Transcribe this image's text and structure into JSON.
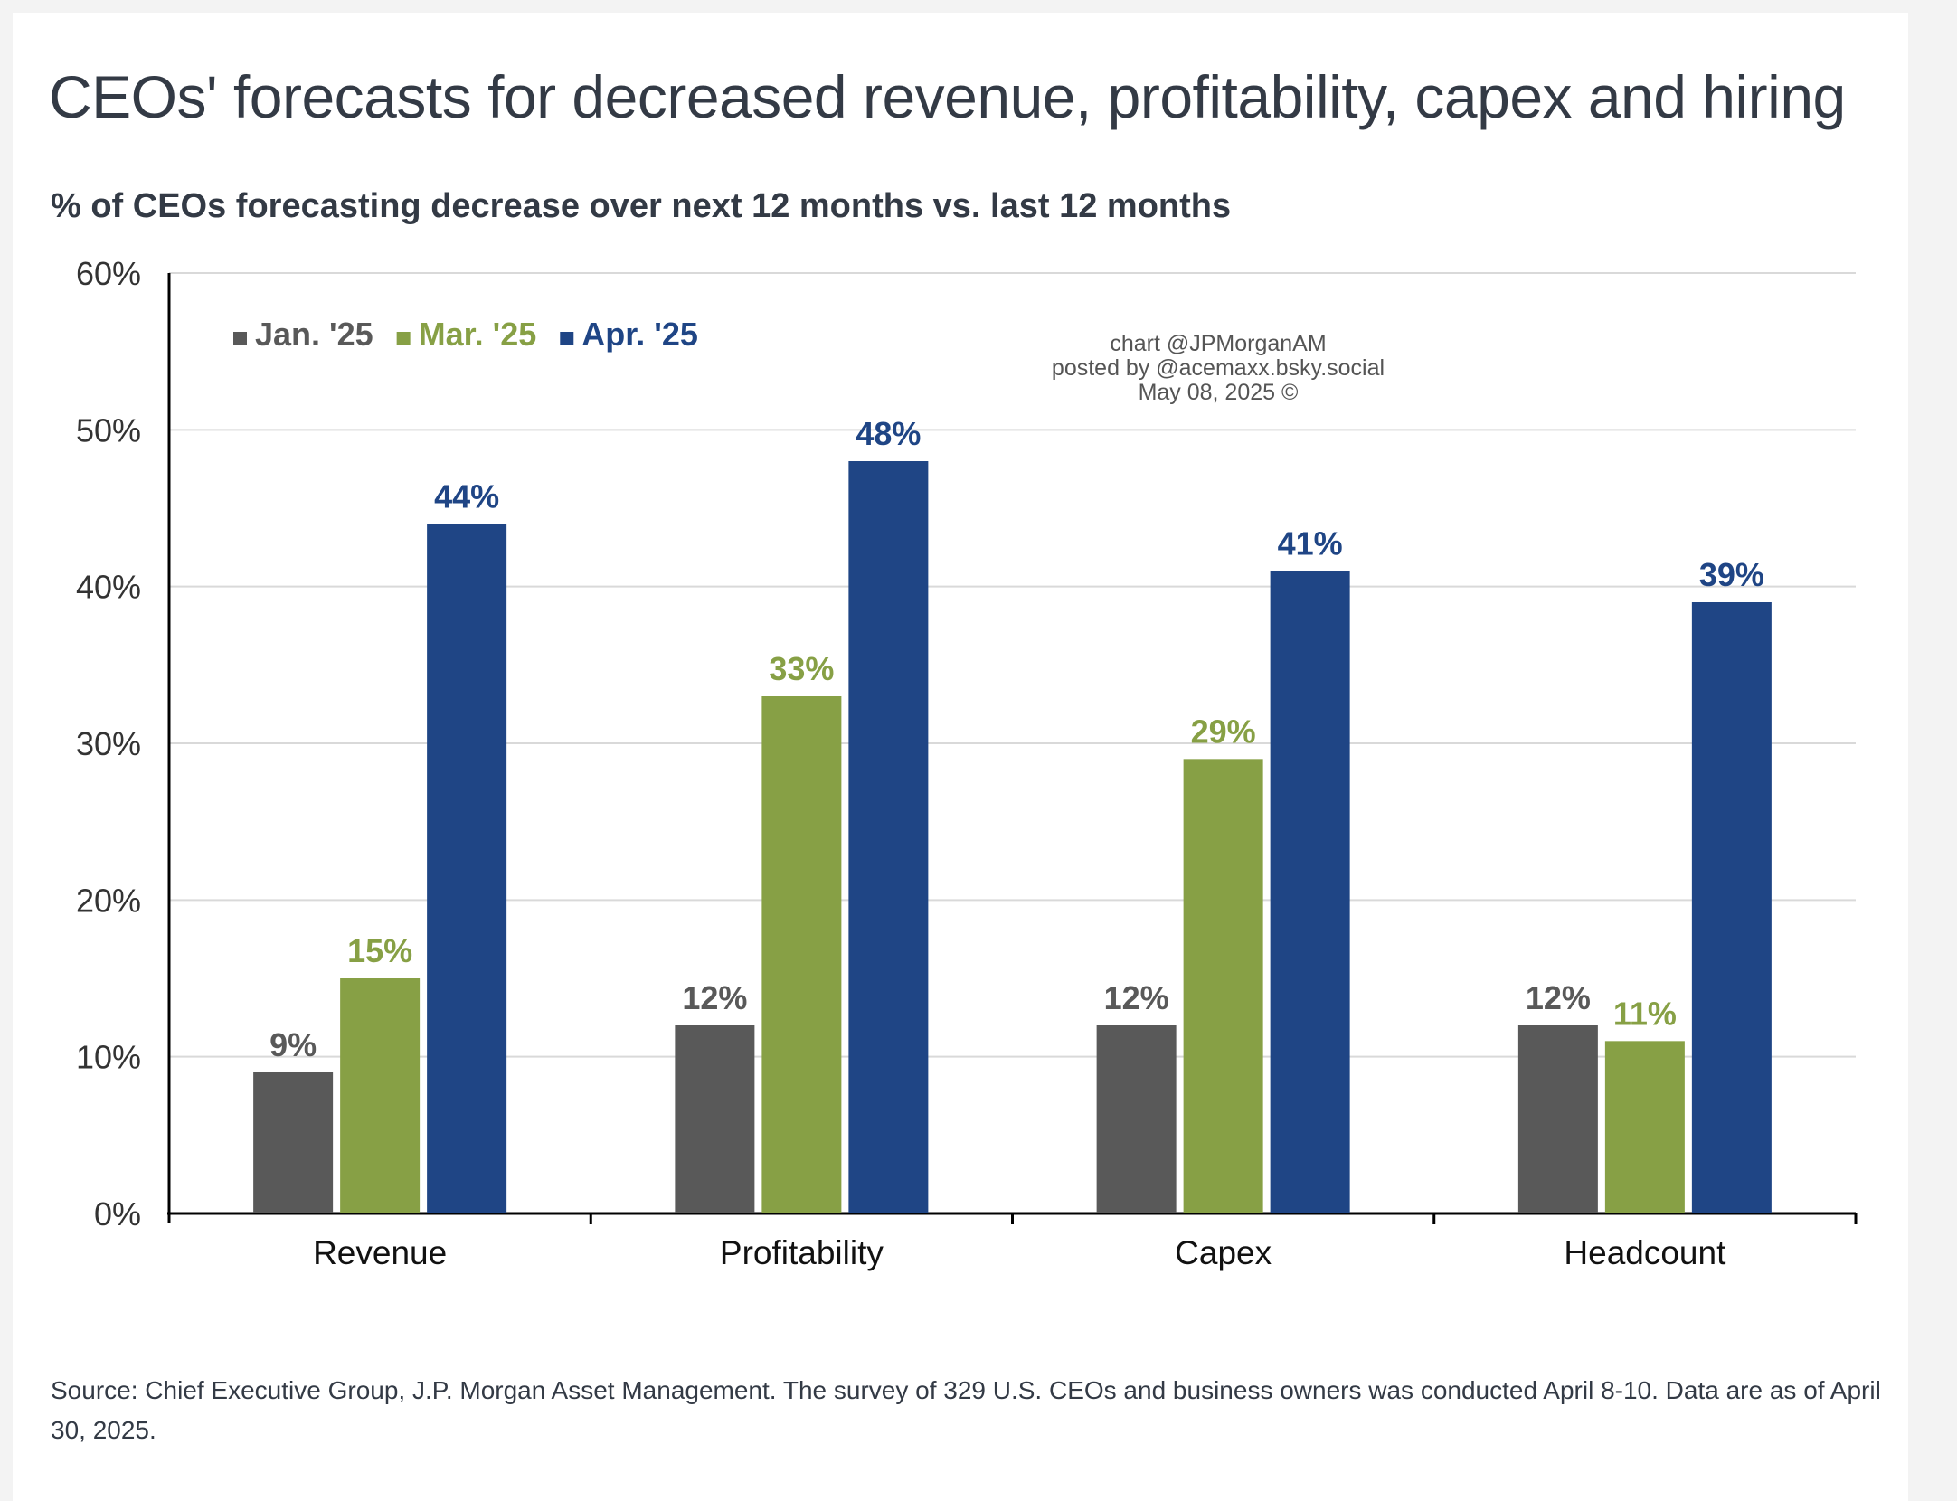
{
  "chart_data": {
    "type": "bar",
    "title": "CEOs' forecasts for decreased revenue, profitability, capex and hiring",
    "subtitle": "% of CEOs forecasting decrease over next 12 months vs. last 12 months",
    "categories": [
      "Revenue",
      "Profitability",
      "Capex",
      "Headcount"
    ],
    "series": [
      {
        "name": "Jan. '25",
        "color": "#595959",
        "values": [
          9,
          12,
          12,
          12
        ],
        "labels": [
          "9%",
          "12%",
          "12%",
          "12%"
        ]
      },
      {
        "name": "Mar. '25",
        "color": "#87a045",
        "values": [
          15,
          33,
          29,
          11
        ],
        "labels": [
          "15%",
          "33%",
          "29%",
          "11%"
        ]
      },
      {
        "name": "Apr. '25",
        "color": "#1f4585",
        "values": [
          44,
          48,
          41,
          39
        ],
        "labels": [
          "44%",
          "48%",
          "41%",
          "39%"
        ]
      }
    ],
    "ylim": [
      0,
      60
    ],
    "yticks": [
      0,
      10,
      20,
      30,
      40,
      50,
      60
    ],
    "ytick_labels": [
      "0%",
      "10%",
      "20%",
      "30%",
      "40%",
      "50%",
      "60%"
    ],
    "grid": true,
    "legend_position": "top-left",
    "label_colors": [
      "#595959",
      "#87a045",
      "#1f4585"
    ]
  },
  "watermark": {
    "line1": "chart @JPMorganAM",
    "line2": "posted by @acemaxx.bsky.social",
    "line3": "May 08, 2025 ©"
  },
  "source": "Source: Chief Executive Group, J.P. Morgan Asset Management. The survey of 329 U.S. CEOs and business owners was conducted April 8-10. Data are as of April 30, 2025."
}
